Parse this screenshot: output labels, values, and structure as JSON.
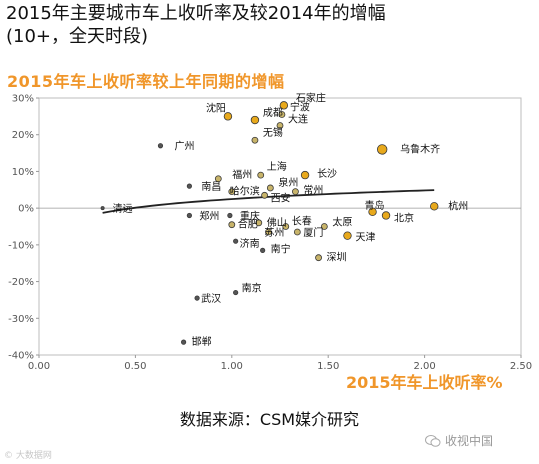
{
  "header": {
    "title_line1": "2015年主要城市车上收听率及较2014年的增幅",
    "title_line2": "(10+，全天时段)"
  },
  "footer": {
    "source": "数据来源：CSM媒介研究",
    "wechat": "收视中国",
    "watermark": "© 大数据网"
  },
  "chart_data": {
    "type": "scatter",
    "title": "2015年车上收听率较上年同期的增幅",
    "xlabel": "2015年车上收听率%",
    "ylabel": "",
    "xlim": [
      0.0,
      2.5
    ],
    "ylim": [
      -40,
      30
    ],
    "x_ticks": [
      "0.00",
      "0.50",
      "1.00",
      "1.50",
      "2.00",
      "2.50"
    ],
    "y_ticks": [
      "30%",
      "20%",
      "10%",
      "0%",
      "-10%",
      "-20%",
      "-30%",
      "-40%"
    ],
    "grid": false,
    "trendline": true,
    "colors": {
      "point_fill": "#c8b46a",
      "point_stroke": "#3a3a3a",
      "highlight_fill": "#e8a91c",
      "axis_label": "#f0962a",
      "trend": "#222222"
    },
    "points": [
      {
        "name": "沈阳",
        "x": 0.98,
        "y": 25.0,
        "size": "m",
        "lx": -22,
        "ly": -5
      },
      {
        "name": "成都",
        "x": 1.12,
        "y": 24.0,
        "size": "m",
        "lx": 8,
        "ly": -4
      },
      {
        "name": "石家庄",
        "x": 1.27,
        "y": 28.0,
        "size": "m",
        "lx": 12,
        "ly": -4
      },
      {
        "name": "宁波",
        "x": 1.26,
        "y": 25.5,
        "size": "s",
        "lx": 8,
        "ly": -4
      },
      {
        "name": "大连",
        "x": 1.25,
        "y": 22.5,
        "size": "s",
        "lx": 8,
        "ly": -3
      },
      {
        "name": "无锡",
        "x": 1.12,
        "y": 18.5,
        "size": "s",
        "lx": 8,
        "ly": -4
      },
      {
        "name": "广州",
        "x": 0.63,
        "y": 17.0,
        "size": "xs",
        "lx": 14,
        "ly": 4
      },
      {
        "name": "乌鲁木齐",
        "x": 1.78,
        "y": 16.0,
        "size": "l",
        "lx": 18,
        "ly": 3
      },
      {
        "name": "福州",
        "x": 0.93,
        "y": 8.0,
        "size": "s",
        "lx": 14,
        "ly": -1
      },
      {
        "name": "上海",
        "x": 1.15,
        "y": 9.0,
        "size": "s",
        "lx": 6,
        "ly": -5
      },
      {
        "name": "长沙",
        "x": 1.38,
        "y": 9.0,
        "size": "m",
        "lx": 12,
        "ly": 2
      },
      {
        "name": "南昌",
        "x": 0.78,
        "y": 6.0,
        "size": "xs",
        "lx": 12,
        "ly": 4
      },
      {
        "name": "泉州",
        "x": 1.2,
        "y": 5.5,
        "size": "s",
        "lx": 8,
        "ly": -2
      },
      {
        "name": "哈尔滨",
        "x": 1.0,
        "y": 4.5,
        "size": "s",
        "lx": -2,
        "ly": 3
      },
      {
        "name": "西安",
        "x": 1.17,
        "y": 3.5,
        "size": "s",
        "lx": 6,
        "ly": 6
      },
      {
        "name": "常州",
        "x": 1.33,
        "y": 4.5,
        "size": "s",
        "lx": 8,
        "ly": 2
      },
      {
        "name": "青岛",
        "x": 1.73,
        "y": -1.0,
        "size": "m",
        "lx": -8,
        "ly": -3
      },
      {
        "name": "北京",
        "x": 1.8,
        "y": -2.0,
        "size": "m",
        "lx": 8,
        "ly": 6
      },
      {
        "name": "杭州",
        "x": 2.05,
        "y": 0.5,
        "size": "m",
        "lx": 14,
        "ly": 3
      },
      {
        "name": "清远",
        "x": 0.33,
        "y": 0.0,
        "size": "xxs",
        "lx": 10,
        "ly": 4
      },
      {
        "name": "郑州",
        "x": 0.78,
        "y": -2.0,
        "size": "xs",
        "lx": 10,
        "ly": 4
      },
      {
        "name": "重庆",
        "x": 0.99,
        "y": -2.0,
        "size": "xs",
        "lx": 10,
        "ly": 4
      },
      {
        "name": "合肥",
        "x": 1.0,
        "y": -4.5,
        "size": "s",
        "lx": 6,
        "ly": 3
      },
      {
        "name": "佛山",
        "x": 1.14,
        "y": -4.0,
        "size": "s",
        "lx": 8,
        "ly": 3
      },
      {
        "name": "长春",
        "x": 1.28,
        "y": -5.0,
        "size": "s",
        "lx": 6,
        "ly": -2
      },
      {
        "name": "太原",
        "x": 1.48,
        "y": -5.0,
        "size": "s",
        "lx": 8,
        "ly": -1
      },
      {
        "name": "苏州",
        "x": 1.19,
        "y": -6.5,
        "size": "s",
        "lx": -4,
        "ly": 4
      },
      {
        "name": "厦门",
        "x": 1.34,
        "y": -6.5,
        "size": "s",
        "lx": 6,
        "ly": 4
      },
      {
        "name": "天津",
        "x": 1.6,
        "y": -7.5,
        "size": "m",
        "lx": 8,
        "ly": 5
      },
      {
        "name": "济南",
        "x": 1.02,
        "y": -9.0,
        "size": "xs",
        "lx": 4,
        "ly": 6
      },
      {
        "name": "南宁",
        "x": 1.16,
        "y": -11.5,
        "size": "xs",
        "lx": 8,
        "ly": 2
      },
      {
        "name": "深圳",
        "x": 1.45,
        "y": -13.5,
        "size": "s",
        "lx": 8,
        "ly": 3
      },
      {
        "name": "南京",
        "x": 1.02,
        "y": -23.0,
        "size": "xs",
        "lx": 6,
        "ly": -1
      },
      {
        "name": "武汉",
        "x": 0.82,
        "y": -24.5,
        "size": "xs",
        "lx": 4,
        "ly": 4
      },
      {
        "name": "邯郸",
        "x": 0.75,
        "y": -36.5,
        "size": "xs",
        "lx": 8,
        "ly": 3
      }
    ]
  }
}
